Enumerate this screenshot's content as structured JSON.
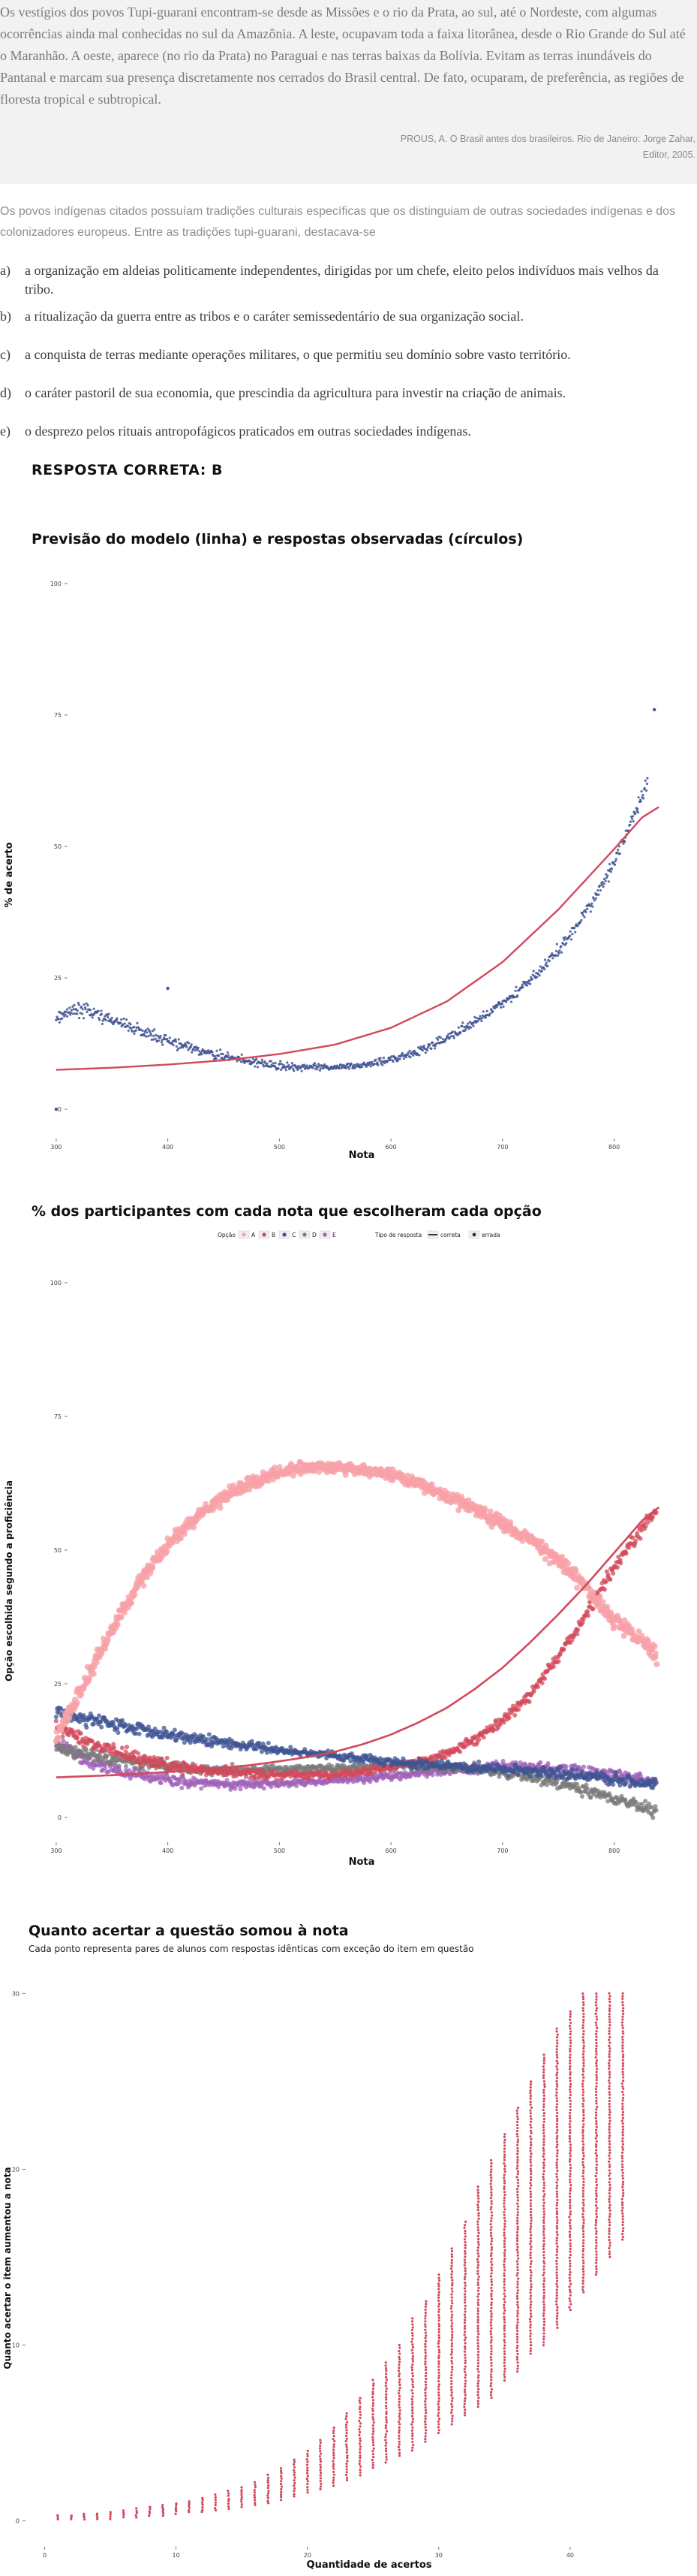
{
  "passage": {
    "text": "Os vestígios dos povos Tupi-guarani encontram-se desde as Missões e o rio da Prata, ao sul, até o Nordeste, com algumas ocorrências ainda mal conhecidas no sul da Amazônia. A leste, ocupavam toda a faixa litorânea, desde o Rio Grande do Sul até o Maranhão. A oeste, aparece (no rio da Prata) no Paraguai e nas terras baixas da Bolívia. Evitam as terras inundáveis do Pantanal e marcam sua presença discretamente nos cerrados do Brasil central. De fato, ocuparam, de preferência, as regiões de floresta tropical e subtropical.",
    "source": "PROUS, A. O Brasil antes dos brasileiros. Rio de Janeiro: Jorge Zahar, Editor, 2005."
  },
  "question": {
    "intro": "Os povos indígenas citados possuíam tradições culturais específicas que os distinguiam de outras sociedades indígenas e dos colonizadores europeus. Entre as tradições tupi-guarani, destacava-se",
    "alternatives": [
      {
        "letter": "a)",
        "text": "a organização em aldeias politicamente independentes, dirigidas por um chefe, eleito pelos indivíduos mais velhos da tribo."
      },
      {
        "letter": "b)",
        "text": "a ritualização da guerra entre as tribos e o caráter semissedentário de sua organização social."
      },
      {
        "letter": "c)",
        "text": "a conquista de terras mediante operações militares, o que permitiu seu domínio sobre vasto território."
      },
      {
        "letter": "d)",
        "text": "o caráter pastoril de sua economia, que prescindia da agricultura para investir na criação de animais."
      },
      {
        "letter": "e)",
        "text": "o desprezo pelos rituais antropofágicos praticados em outras sociedades indígenas."
      }
    ],
    "answer": "RESPOSTA CORRETA: B"
  },
  "colors": {
    "correct": "#d1495b",
    "observed": "#3f5493",
    "A": "#f8a1a8",
    "B": "#d1495b",
    "C": "#3f5493",
    "D": "#7a7a7a",
    "E": "#a061b8"
  },
  "chart_data": [
    {
      "type": "scatter",
      "title": "Previsão do modelo (linha) e respostas observadas (círculos)",
      "xlabel": "Nota",
      "ylabel": "% de acerto",
      "xlim": [
        290,
        850
      ],
      "ylim": [
        0,
        100
      ],
      "x_ticks": [
        300,
        400,
        500,
        600,
        700,
        800
      ],
      "y_ticks": [
        0,
        25,
        50,
        75,
        100
      ],
      "grid": false,
      "series": [
        {
          "role": "model-line",
          "x": [
            300,
            350,
            400,
            450,
            500,
            550,
            600,
            650,
            700,
            750,
            800,
            825,
            840
          ],
          "y": [
            7.5,
            7.9,
            8.5,
            9.3,
            10.5,
            12.3,
            15.5,
            20.5,
            28,
            38,
            49.5,
            55.5,
            57.5
          ]
        },
        {
          "role": "observed-points",
          "x": [
            300,
            310,
            320,
            330,
            340,
            350,
            360,
            370,
            380,
            390,
            400,
            410,
            420,
            430,
            440,
            450,
            460,
            470,
            480,
            490,
            500,
            510,
            520,
            530,
            540,
            550,
            560,
            570,
            580,
            590,
            600,
            610,
            620,
            630,
            640,
            650,
            660,
            670,
            680,
            690,
            700,
            710,
            720,
            730,
            740,
            750,
            760,
            770,
            780,
            790,
            800,
            810,
            820,
            830
          ],
          "y": [
            17,
            18.5,
            19,
            18.5,
            17.8,
            17,
            16.2,
            15.3,
            14.6,
            13.8,
            13,
            12.3,
            11.7,
            11,
            10.5,
            10,
            9.6,
            9.2,
            8.8,
            8.5,
            8.3,
            8.1,
            8,
            7.9,
            7.9,
            8,
            8.1,
            8.3,
            8.6,
            9,
            9.5,
            10,
            10.8,
            11.5,
            12.5,
            13.5,
            14.8,
            16,
            17.3,
            18.7,
            20.2,
            21.8,
            23.6,
            25.6,
            27.8,
            30.2,
            33,
            36.2,
            39.5,
            43,
            47,
            52,
            57,
            62
          ]
        },
        {
          "role": "outliers",
          "x": [
            300,
            400,
            836
          ],
          "y": [
            0,
            23,
            76
          ]
        }
      ]
    },
    {
      "type": "scatter",
      "title": "% dos participantes com cada nota que escolheram cada opção",
      "xlabel": "Nota",
      "ylabel": "Opção escolhida segundo a proficiência",
      "xlim": [
        290,
        850
      ],
      "ylim": [
        0,
        100
      ],
      "x_ticks": [
        300,
        400,
        500,
        600,
        700,
        800
      ],
      "y_ticks": [
        0,
        25,
        50,
        75,
        100
      ],
      "legend": {
        "option_label": "Opção",
        "options": [
          "A",
          "B",
          "C",
          "D",
          "E"
        ],
        "type_label": "Tipo de resposta",
        "types": [
          "correta",
          "errada"
        ],
        "placement": "top"
      },
      "categories": [
        "A",
        "B",
        "C",
        "D",
        "E"
      ],
      "x": [
        300,
        325,
        350,
        375,
        400,
        425,
        450,
        475,
        500,
        525,
        550,
        575,
        600,
        625,
        650,
        675,
        700,
        725,
        750,
        775,
        800,
        825,
        840
      ],
      "series": [
        {
          "name": "A",
          "values": [
            15,
            25,
            35,
            44,
            51,
            56,
            60,
            62.5,
            64.5,
            65.5,
            65.5,
            65,
            64,
            62.5,
            60,
            57.5,
            55,
            52,
            48,
            43,
            37,
            33,
            30
          ]
        },
        {
          "name": "B",
          "values": [
            17,
            14.5,
            12.5,
            11,
            9.8,
            9,
            8.5,
            8.2,
            8,
            8,
            8.2,
            8.6,
            9.3,
            10.5,
            12,
            14.5,
            18,
            23,
            30,
            38,
            47,
            54,
            58
          ]
        },
        {
          "name": "C",
          "values": [
            20,
            18.5,
            17.5,
            16.5,
            15.5,
            14.8,
            14,
            13.3,
            12.6,
            12,
            11.5,
            11,
            10.5,
            10,
            9.7,
            9.3,
            9,
            8.6,
            8.2,
            7.7,
            7.2,
            6.6,
            6.3
          ]
        },
        {
          "name": "D",
          "values": [
            13,
            12,
            11,
            10.2,
            9.6,
            9.2,
            9,
            8.9,
            8.9,
            9,
            9.2,
            9.4,
            9.6,
            9.6,
            9.4,
            9,
            8.4,
            7.5,
            6.5,
            5,
            3.5,
            2,
            1
          ]
        },
        {
          "name": "E",
          "values": [
            14,
            11,
            9,
            7.8,
            7,
            6.5,
            6.3,
            6.3,
            6.4,
            6.6,
            6.9,
            7.3,
            7.8,
            8.3,
            8.8,
            9.2,
            9.5,
            9.5,
            9.2,
            8.6,
            7.8,
            7,
            6.4
          ]
        }
      ],
      "model_lines": {
        "B": [
          7.5,
          7.7,
          7.9,
          8.2,
          8.5,
          8.9,
          9.3,
          9.8,
          10.5,
          11.3,
          12.3,
          13.7,
          15.5,
          17.8,
          20.5,
          24,
          28,
          32.8,
          38,
          43.5,
          49.5,
          55.5,
          58
        ]
      }
    },
    {
      "type": "scatter",
      "title": "Quanto acertar a questão somou à nota",
      "subtitle": "Cada ponto representa pares de alunos com respostas idênticas com exceção do item em questão",
      "xlabel": "Quantidade de acertos",
      "ylabel": "Quanto acertar o item aumentou a nota",
      "xlim": [
        -1,
        48
      ],
      "ylim": [
        -1,
        31
      ],
      "x_ticks": [
        0,
        10,
        20,
        30,
        40
      ],
      "y_ticks": [
        0,
        10,
        20,
        30
      ],
      "x": [
        1,
        2,
        3,
        4,
        5,
        6,
        7,
        8,
        9,
        10,
        11,
        12,
        13,
        14,
        15,
        16,
        17,
        18,
        19,
        20,
        21,
        22,
        23,
        24,
        25,
        26,
        27,
        28,
        29,
        30,
        31,
        32,
        33,
        34,
        35,
        36,
        37,
        38,
        39,
        40,
        41,
        42,
        43,
        44
      ],
      "y_min": [
        0.1,
        0.1,
        0.1,
        0.1,
        0.1,
        0.2,
        0.2,
        0.3,
        0.3,
        0.4,
        0.5,
        0.5,
        0.6,
        0.7,
        0.8,
        0.9,
        1,
        1.2,
        1.4,
        1.6,
        1.8,
        2,
        2.3,
        2.6,
        3,
        3.3,
        3.7,
        4,
        4.5,
        5,
        5.5,
        6,
        6.5,
        7,
        8,
        8.5,
        9.5,
        10,
        11,
        12,
        13,
        14,
        15,
        16
      ],
      "y_max": [
        0.3,
        0.3,
        0.4,
        0.4,
        0.5,
        0.6,
        0.7,
        0.8,
        0.9,
        1,
        1.1,
        1.3,
        1.5,
        1.7,
        1.9,
        2.2,
        2.6,
        3,
        3.5,
        4,
        4.6,
        5.3,
        6.1,
        7,
        8,
        9,
        10,
        11.5,
        12.5,
        14,
        15.5,
        17,
        19,
        20.5,
        22,
        23.5,
        25,
        26.5,
        28,
        29,
        30,
        30,
        30,
        30
      ]
    }
  ]
}
